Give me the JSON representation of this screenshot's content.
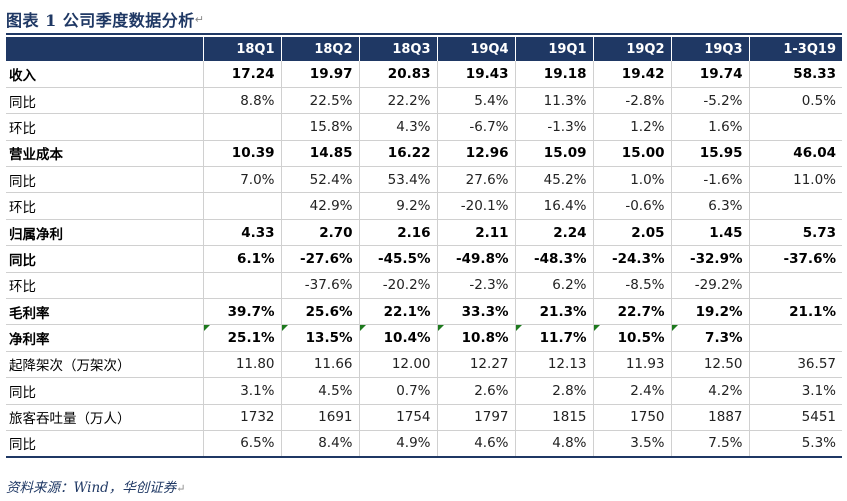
{
  "title": "图表 1   公司季度数据分析",
  "paragraph_mark": "↵",
  "header": [
    "",
    "18Q1",
    "18Q2",
    "18Q3",
    "19Q4",
    "19Q1",
    "19Q2",
    "19Q3",
    "1-3Q19"
  ],
  "rows": [
    {
      "label": "收入",
      "bold": true,
      "cells": [
        "17.24",
        "19.97",
        "20.83",
        "19.43",
        "19.18",
        "19.42",
        "19.74",
        "58.33"
      ]
    },
    {
      "label": "同比",
      "bold": false,
      "cells": [
        "8.8%",
        "22.5%",
        "22.2%",
        "5.4%",
        "11.3%",
        "-2.8%",
        "-5.2%",
        "0.5%"
      ]
    },
    {
      "label": "环比",
      "bold": false,
      "cells": [
        "",
        "15.8%",
        "4.3%",
        "-6.7%",
        "-1.3%",
        "1.2%",
        "1.6%",
        ""
      ]
    },
    {
      "label": "营业成本",
      "bold": true,
      "cells": [
        "10.39",
        "14.85",
        "16.22",
        "12.96",
        "15.09",
        "15.00",
        "15.95",
        "46.04"
      ]
    },
    {
      "label": "同比",
      "bold": false,
      "cells": [
        "7.0%",
        "52.4%",
        "53.4%",
        "27.6%",
        "45.2%",
        "1.0%",
        "-1.6%",
        "11.0%"
      ]
    },
    {
      "label": "环比",
      "bold": false,
      "cells": [
        "",
        "42.9%",
        "9.2%",
        "-20.1%",
        "16.4%",
        "-0.6%",
        "6.3%",
        ""
      ]
    },
    {
      "label": "归属净利",
      "bold": true,
      "cells": [
        "4.33",
        "2.70",
        "2.16",
        "2.11",
        "2.24",
        "2.05",
        "1.45",
        "5.73"
      ]
    },
    {
      "label": "同比",
      "bold": true,
      "cells": [
        "6.1%",
        "-27.6%",
        "-45.5%",
        "-49.8%",
        "-48.3%",
        "-24.3%",
        "-32.9%",
        "-37.6%"
      ]
    },
    {
      "label": "环比",
      "bold": false,
      "cells": [
        "",
        "-37.6%",
        "-20.2%",
        "-2.3%",
        "6.2%",
        "-8.5%",
        "-29.2%",
        ""
      ]
    },
    {
      "label": "毛利率",
      "bold": true,
      "cells": [
        "39.7%",
        "25.6%",
        "22.1%",
        "33.3%",
        "21.3%",
        "22.7%",
        "19.2%",
        "21.1%"
      ]
    },
    {
      "label": "净利率",
      "bold": true,
      "flags": true,
      "cells": [
        "25.1%",
        "13.5%",
        "10.4%",
        "10.8%",
        "11.7%",
        "10.5%",
        "7.3%",
        ""
      ]
    },
    {
      "label": "起降架次（万架次）",
      "bold": false,
      "cells": [
        "11.80",
        "11.66",
        "12.00",
        "12.27",
        "12.13",
        "11.93",
        "12.50",
        "36.57"
      ]
    },
    {
      "label": "同比",
      "bold": false,
      "cells": [
        "3.1%",
        "4.5%",
        "0.7%",
        "2.6%",
        "2.8%",
        "2.4%",
        "4.2%",
        "3.1%"
      ]
    },
    {
      "label": "旅客吞吐量（万人）",
      "bold": false,
      "cells": [
        "1732",
        "1691",
        "1754",
        "1797",
        "1815",
        "1750",
        "1887",
        "5451"
      ]
    },
    {
      "label": "同比",
      "bold": false,
      "cells": [
        "6.5%",
        "8.4%",
        "4.9%",
        "4.6%",
        "4.8%",
        "3.5%",
        "7.5%",
        "5.3%"
      ]
    }
  ],
  "source": "资料来源：Wind，华创证券",
  "colors": {
    "header_bg": "#1f3864",
    "flag": "#1e7a1e",
    "grid": "#d0d0d0"
  }
}
